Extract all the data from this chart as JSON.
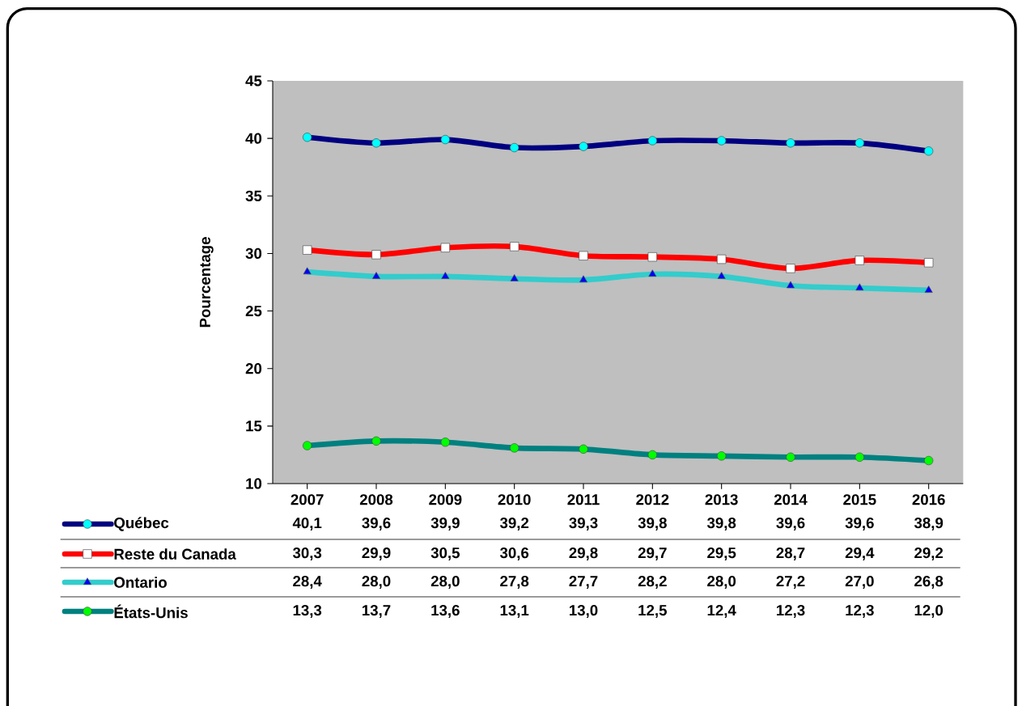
{
  "chart_data": {
    "type": "line",
    "ylabel": "Pourcentage",
    "categories": [
      "2007",
      "2008",
      "2009",
      "2010",
      "2011",
      "2012",
      "2013",
      "2014",
      "2015",
      "2016"
    ],
    "series": [
      {
        "name": "Québec",
        "color": "#000080",
        "marker": "circle",
        "values": [
          40.1,
          39.6,
          39.9,
          39.2,
          39.3,
          39.8,
          39.8,
          39.6,
          39.6,
          38.9
        ],
        "value_labels": [
          "40,1",
          "39,6",
          "39,9",
          "39,2",
          "39,3",
          "39,8",
          "39,8",
          "39,6",
          "39,6",
          "38,9"
        ]
      },
      {
        "name": "Reste du Canada",
        "color": "#ff0000",
        "marker": "square",
        "values": [
          30.3,
          29.9,
          30.5,
          30.6,
          29.8,
          29.7,
          29.5,
          28.7,
          29.4,
          29.2
        ],
        "value_labels": [
          "30,3",
          "29,9",
          "30,5",
          "30,6",
          "29,8",
          "29,7",
          "29,5",
          "28,7",
          "29,4",
          "29,2"
        ]
      },
      {
        "name": "Ontario",
        "color": "#33cccc",
        "marker": "triangle",
        "values": [
          28.4,
          28.0,
          28.0,
          27.8,
          27.7,
          28.2,
          28.0,
          27.2,
          27.0,
          26.8
        ],
        "value_labels": [
          "28,4",
          "28,0",
          "28,0",
          "27,8",
          "27,7",
          "28,2",
          "28,0",
          "27,2",
          "27,0",
          "26,8"
        ]
      },
      {
        "name": "États-Unis",
        "color": "#008080",
        "marker": "circle",
        "values": [
          13.3,
          13.7,
          13.6,
          13.1,
          13.0,
          12.5,
          12.4,
          12.3,
          12.3,
          12.0
        ],
        "value_labels": [
          "13,3",
          "13,7",
          "13,6",
          "13,1",
          "13,0",
          "12,5",
          "12,4",
          "12,3",
          "12,3",
          "12,0"
        ]
      }
    ],
    "ylim": [
      10,
      45
    ],
    "yticks": [
      10,
      15,
      20,
      25,
      30,
      35,
      40,
      45
    ],
    "legend": "bottom"
  }
}
